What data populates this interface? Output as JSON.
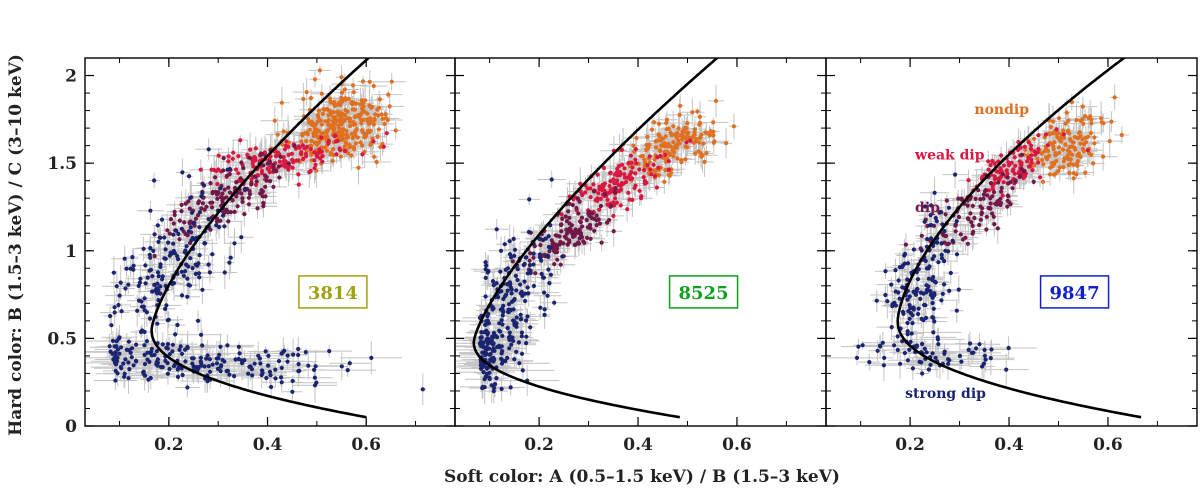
{
  "chart_data": {
    "type": "scatter",
    "xlabel": "Soft color: A (0.5–1.5 keV) / B (1.5–3 keV)",
    "ylabel": "Hard color: B (1.5–3 keV) / C (3–10 keV)",
    "xlim": [
      0.03,
      0.78
    ],
    "ylim": [
      0.0,
      2.1
    ],
    "x_ticks": [
      "0.2",
      "0.4",
      "0.6"
    ],
    "x_tick_values": [
      0.2,
      0.4,
      0.6
    ],
    "y_ticks": [
      "0",
      "0.5",
      "1",
      "1.5",
      "2"
    ],
    "y_tick_values": [
      0,
      0.5,
      1,
      1.5,
      2
    ],
    "error_bar_color": "#c4c4c4",
    "curve_color": "#000000",
    "states": [
      {
        "name": "nondip",
        "color": "#e07020"
      },
      {
        "name": "weak dip",
        "color": "#d81840"
      },
      {
        "name": "dip",
        "color": "#701848"
      },
      {
        "name": "strong dip",
        "color": "#1a2470"
      }
    ],
    "state_labels": [
      {
        "text": "nondip",
        "panel": 2,
        "x": 0.33,
        "y": 1.78,
        "color": "#e07020"
      },
      {
        "text": "weak dip",
        "panel": 2,
        "x": 0.21,
        "y": 1.52,
        "color": "#d81840"
      },
      {
        "text": "dip",
        "panel": 2,
        "x": 0.21,
        "y": 1.22,
        "color": "#701848"
      },
      {
        "text": "strong dip",
        "panel": 2,
        "x": 0.19,
        "y": 0.16,
        "color": "#1a2470"
      }
    ],
    "panels": [
      {
        "obsid": "3814",
        "label_color": "#a0a010",
        "label_pos": [
          0.67,
          0.81
        ],
        "curve": {
          "x_min": 0.165,
          "y_vertex": 0.55,
          "a": 12.0,
          "b": 4.2,
          "pow": 1.4
        },
        "clusters": [
          {
            "state": "nondip",
            "n": 320,
            "cx": 0.55,
            "cy": 1.72,
            "sx": 0.05,
            "sy": 0.11,
            "rho": 0.3
          },
          {
            "state": "weak dip",
            "n": 140,
            "cx": 0.43,
            "cy": 1.52,
            "sx": 0.07,
            "sy": 0.07,
            "rho": 0.6
          },
          {
            "state": "dip",
            "n": 150,
            "cx": 0.32,
            "cy": 1.32,
            "sx": 0.06,
            "sy": 0.12,
            "rho": 0.7
          },
          {
            "state": "strong dip",
            "n": 180,
            "cx": 0.2,
            "cy": 0.9,
            "sx": 0.06,
            "sy": 0.22,
            "rho": 0.5
          },
          {
            "state": "strong dip",
            "n": 200,
            "cx": 0.25,
            "cy": 0.36,
            "sx": 0.14,
            "sy": 0.07,
            "rho": -0.3
          }
        ]
      },
      {
        "obsid": "8525",
        "label_color": "#10a020",
        "label_pos": [
          0.67,
          0.81
        ],
        "curve": {
          "x_min": 0.068,
          "y_vertex": 0.48,
          "a": 16.0,
          "b": 3.9,
          "pow": 1.35
        },
        "clusters": [
          {
            "state": "nondip",
            "n": 170,
            "cx": 0.47,
            "cy": 1.6,
            "sx": 0.045,
            "sy": 0.09,
            "rho": 0.4
          },
          {
            "state": "weak dip",
            "n": 140,
            "cx": 0.36,
            "cy": 1.38,
            "sx": 0.05,
            "sy": 0.1,
            "rho": 0.7
          },
          {
            "state": "dip",
            "n": 130,
            "cx": 0.27,
            "cy": 1.12,
            "sx": 0.04,
            "sy": 0.1,
            "rho": 0.7
          },
          {
            "state": "strong dip",
            "n": 170,
            "cx": 0.14,
            "cy": 0.75,
            "sx": 0.045,
            "sy": 0.2,
            "rho": 0.6
          },
          {
            "state": "strong dip",
            "n": 110,
            "cx": 0.1,
            "cy": 0.42,
            "sx": 0.035,
            "sy": 0.1,
            "rho": 0.0
          }
        ]
      },
      {
        "obsid": "9847",
        "label_color": "#1020d0",
        "label_pos": [
          0.67,
          0.81
        ],
        "curve": {
          "x_min": 0.175,
          "y_vertex": 0.6,
          "a": 11.0,
          "b": 4.1,
          "pow": 1.55
        },
        "clusters": [
          {
            "state": "nondip",
            "n": 150,
            "cx": 0.51,
            "cy": 1.6,
            "sx": 0.045,
            "sy": 0.1,
            "rho": 0.4
          },
          {
            "state": "weak dip",
            "n": 100,
            "cx": 0.41,
            "cy": 1.48,
            "sx": 0.04,
            "sy": 0.08,
            "rho": 0.6
          },
          {
            "state": "dip",
            "n": 110,
            "cx": 0.33,
            "cy": 1.22,
            "sx": 0.05,
            "sy": 0.11,
            "rho": 0.7
          },
          {
            "state": "strong dip",
            "n": 150,
            "cx": 0.22,
            "cy": 0.82,
            "sx": 0.035,
            "sy": 0.2,
            "rho": 0.5
          },
          {
            "state": "strong dip",
            "n": 60,
            "cx": 0.24,
            "cy": 0.42,
            "sx": 0.09,
            "sy": 0.07,
            "rho": -0.4
          }
        ]
      }
    ]
  }
}
